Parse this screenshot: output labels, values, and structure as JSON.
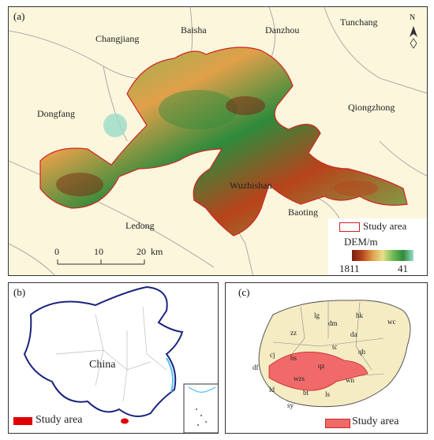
{
  "panel_a": {
    "label": "(a)",
    "places": [
      "Tunchang",
      "Danzhou",
      "Baisha",
      "Changjiang",
      "Dongfang",
      "Qiongzhong",
      "Wuzhishan",
      "Baoting",
      "Ledong"
    ],
    "north_label": "N",
    "scale_ticks": [
      "0",
      "10",
      "20"
    ],
    "scale_unit": "km",
    "legend": {
      "study_area": "Study area",
      "dem_title": "DEM/m",
      "dem_high": "1811",
      "dem_low": "41",
      "colors": [
        "#7a1f10",
        "#b8431b",
        "#e0a04a",
        "#e8e08c",
        "#6fbb55",
        "#2e8b3c",
        "#9bdcc8"
      ]
    }
  },
  "panel_b": {
    "label": "(b)",
    "country": "China",
    "legend_study_area": "Study area",
    "study_color": "#e00000"
  },
  "panel_c": {
    "label": "(c)",
    "counties": [
      "lg",
      "dm",
      "hk",
      "wc",
      "zz",
      "da",
      "tc",
      "qh",
      "cj",
      "bs",
      "df",
      "qz",
      "wn",
      "ld",
      "wzs",
      "bt",
      "ls",
      "sy"
    ],
    "legend_study_area": "Study area",
    "study_color": "#f06a6a",
    "island_color": "#f5ecc4"
  }
}
